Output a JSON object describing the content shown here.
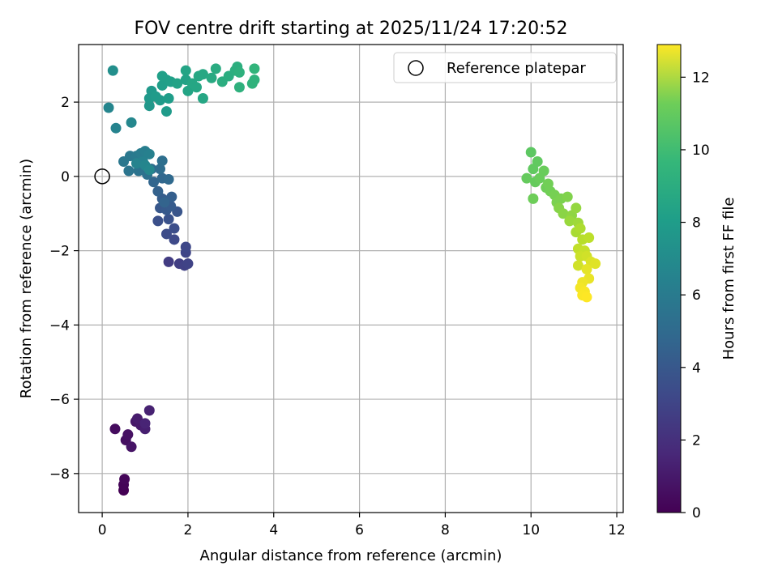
{
  "chart_data": {
    "type": "scatter",
    "title": "FOV centre drift starting at 2025/11/24 17:20:52",
    "xlabel": "Angular distance from reference (arcmin)",
    "ylabel": "Rotation from reference (arcmin)",
    "xlim": [
      -0.55,
      12.15
    ],
    "ylim": [
      -9.05,
      3.55
    ],
    "xticks": [
      0,
      2,
      4,
      6,
      8,
      10,
      12
    ],
    "yticks": [
      -8,
      -6,
      -4,
      -2,
      0,
      2
    ],
    "grid": true,
    "legend": {
      "placement": "top-right",
      "entries": [
        "Reference platepar"
      ]
    },
    "reference_point": {
      "x": 0,
      "y": 0,
      "label": "Reference platepar"
    },
    "colorbar": {
      "label": "Hours from first FF file",
      "min": 0,
      "max": 12.9,
      "ticks": [
        0,
        2,
        4,
        6,
        8,
        10,
        12
      ],
      "colormap": "viridis"
    },
    "series": [
      {
        "name": "FOV centre drift",
        "points": [
          {
            "x": 0.5,
            "y": -8.45,
            "t": 0.0
          },
          {
            "x": 0.5,
            "y": -8.3,
            "t": 0.1
          },
          {
            "x": 0.52,
            "y": -8.15,
            "t": 0.2
          },
          {
            "x": 0.3,
            "y": -6.8,
            "t": 0.4
          },
          {
            "x": 0.55,
            "y": -7.1,
            "t": 0.5
          },
          {
            "x": 0.6,
            "y": -6.95,
            "t": 0.6
          },
          {
            "x": 0.68,
            "y": -7.28,
            "t": 0.7
          },
          {
            "x": 0.78,
            "y": -6.6,
            "t": 0.8
          },
          {
            "x": 0.9,
            "y": -6.7,
            "t": 0.9
          },
          {
            "x": 0.82,
            "y": -6.52,
            "t": 1.0
          },
          {
            "x": 1.0,
            "y": -6.8,
            "t": 1.1
          },
          {
            "x": 1.1,
            "y": -6.3,
            "t": 1.2
          },
          {
            "x": 1.0,
            "y": -6.65,
            "t": 1.3
          },
          {
            "x": 1.55,
            "y": -2.3,
            "t": 2.3
          },
          {
            "x": 1.8,
            "y": -2.35,
            "t": 2.4
          },
          {
            "x": 1.92,
            "y": -2.4,
            "t": 2.5
          },
          {
            "x": 2.0,
            "y": -2.35,
            "t": 2.6
          },
          {
            "x": 1.95,
            "y": -2.05,
            "t": 2.7
          },
          {
            "x": 1.95,
            "y": -1.9,
            "t": 2.8
          },
          {
            "x": 1.68,
            "y": -1.7,
            "t": 2.9
          },
          {
            "x": 1.5,
            "y": -1.55,
            "t": 3.0
          },
          {
            "x": 1.68,
            "y": -1.4,
            "t": 3.1
          },
          {
            "x": 1.3,
            "y": -1.2,
            "t": 3.2
          },
          {
            "x": 1.55,
            "y": -1.15,
            "t": 3.3
          },
          {
            "x": 1.75,
            "y": -0.95,
            "t": 3.4
          },
          {
            "x": 1.35,
            "y": -0.85,
            "t": 3.5
          },
          {
            "x": 1.5,
            "y": -0.9,
            "t": 3.6
          },
          {
            "x": 1.6,
            "y": -0.8,
            "t": 3.7
          },
          {
            "x": 1.4,
            "y": -0.6,
            "t": 3.8
          },
          {
            "x": 1.62,
            "y": -0.55,
            "t": 3.9
          },
          {
            "x": 1.3,
            "y": -0.4,
            "t": 4.0
          },
          {
            "x": 1.45,
            "y": -0.7,
            "t": 4.1
          },
          {
            "x": 1.2,
            "y": -0.15,
            "t": 4.2
          },
          {
            "x": 1.4,
            "y": -0.05,
            "t": 4.3
          },
          {
            "x": 1.55,
            "y": -0.08,
            "t": 4.4
          },
          {
            "x": 1.15,
            "y": 0.2,
            "t": 4.5
          },
          {
            "x": 1.35,
            "y": 0.2,
            "t": 4.6
          },
          {
            "x": 1.4,
            "y": 0.42,
            "t": 4.7
          },
          {
            "x": 1.05,
            "y": 0.05,
            "t": 4.8
          },
          {
            "x": 0.85,
            "y": 0.15,
            "t": 4.9
          },
          {
            "x": 0.62,
            "y": 0.15,
            "t": 5.0
          },
          {
            "x": 0.5,
            "y": 0.4,
            "t": 5.1
          },
          {
            "x": 0.65,
            "y": 0.55,
            "t": 5.2
          },
          {
            "x": 0.8,
            "y": 0.55,
            "t": 5.3
          },
          {
            "x": 0.9,
            "y": 0.62,
            "t": 5.4
          },
          {
            "x": 1.0,
            "y": 0.68,
            "t": 5.5
          },
          {
            "x": 1.1,
            "y": 0.6,
            "t": 5.6
          },
          {
            "x": 0.95,
            "y": 0.4,
            "t": 5.7
          },
          {
            "x": 0.8,
            "y": 0.35,
            "t": 5.8
          },
          {
            "x": 1.0,
            "y": 0.3,
            "t": 5.9
          },
          {
            "x": 1.1,
            "y": 0.18,
            "t": 6.0
          },
          {
            "x": 0.15,
            "y": 1.85,
            "t": 5.9
          },
          {
            "x": 0.32,
            "y": 1.3,
            "t": 5.8
          },
          {
            "x": 0.68,
            "y": 1.45,
            "t": 6.0
          },
          {
            "x": 0.25,
            "y": 2.85,
            "t": 6.4
          },
          {
            "x": 1.1,
            "y": 1.9,
            "t": 6.8
          },
          {
            "x": 1.15,
            "y": 2.3,
            "t": 6.9
          },
          {
            "x": 1.1,
            "y": 2.1,
            "t": 6.9
          },
          {
            "x": 1.25,
            "y": 2.15,
            "t": 7.0
          },
          {
            "x": 1.35,
            "y": 2.05,
            "t": 7.0
          },
          {
            "x": 1.5,
            "y": 1.75,
            "t": 7.0
          },
          {
            "x": 1.55,
            "y": 2.1,
            "t": 7.1
          },
          {
            "x": 1.4,
            "y": 2.45,
            "t": 7.2
          },
          {
            "x": 1.5,
            "y": 2.6,
            "t": 7.2
          },
          {
            "x": 1.4,
            "y": 2.7,
            "t": 7.3
          },
          {
            "x": 1.6,
            "y": 2.55,
            "t": 7.3
          },
          {
            "x": 1.75,
            "y": 2.5,
            "t": 7.4
          },
          {
            "x": 1.95,
            "y": 2.6,
            "t": 7.4
          },
          {
            "x": 1.95,
            "y": 2.85,
            "t": 7.5
          },
          {
            "x": 2.0,
            "y": 2.3,
            "t": 7.5
          },
          {
            "x": 2.1,
            "y": 2.5,
            "t": 7.6
          },
          {
            "x": 2.2,
            "y": 2.4,
            "t": 7.6
          },
          {
            "x": 2.25,
            "y": 2.7,
            "t": 7.7
          },
          {
            "x": 2.35,
            "y": 2.75,
            "t": 7.7
          },
          {
            "x": 2.35,
            "y": 2.1,
            "t": 7.6
          },
          {
            "x": 2.55,
            "y": 2.65,
            "t": 7.8
          },
          {
            "x": 2.65,
            "y": 2.9,
            "t": 7.9
          },
          {
            "x": 2.8,
            "y": 2.55,
            "t": 8.0
          },
          {
            "x": 2.95,
            "y": 2.7,
            "t": 8.0
          },
          {
            "x": 3.1,
            "y": 2.85,
            "t": 8.1
          },
          {
            "x": 3.15,
            "y": 2.95,
            "t": 8.1
          },
          {
            "x": 3.2,
            "y": 2.8,
            "t": 8.2
          },
          {
            "x": 3.2,
            "y": 2.4,
            "t": 8.2
          },
          {
            "x": 3.5,
            "y": 2.5,
            "t": 8.3
          },
          {
            "x": 3.55,
            "y": 2.6,
            "t": 8.3
          },
          {
            "x": 3.55,
            "y": 2.9,
            "t": 8.4
          },
          {
            "x": 10.0,
            "y": 0.65,
            "t": 9.6
          },
          {
            "x": 10.15,
            "y": 0.4,
            "t": 9.7
          },
          {
            "x": 10.05,
            "y": 0.2,
            "t": 9.7
          },
          {
            "x": 9.9,
            "y": -0.05,
            "t": 9.8
          },
          {
            "x": 10.1,
            "y": -0.15,
            "t": 9.8
          },
          {
            "x": 10.3,
            "y": 0.15,
            "t": 9.9
          },
          {
            "x": 10.2,
            "y": -0.05,
            "t": 9.9
          },
          {
            "x": 10.05,
            "y": -0.6,
            "t": 10.0
          },
          {
            "x": 10.35,
            "y": -0.3,
            "t": 10.0
          },
          {
            "x": 10.45,
            "y": -0.4,
            "t": 10.1
          },
          {
            "x": 10.4,
            "y": -0.2,
            "t": 10.1
          },
          {
            "x": 10.55,
            "y": -0.5,
            "t": 10.2
          },
          {
            "x": 10.6,
            "y": -0.7,
            "t": 10.3
          },
          {
            "x": 10.7,
            "y": -0.6,
            "t": 10.3
          },
          {
            "x": 10.85,
            "y": -0.55,
            "t": 10.4
          },
          {
            "x": 10.65,
            "y": -0.85,
            "t": 10.5
          },
          {
            "x": 10.75,
            "y": -1.0,
            "t": 10.6
          },
          {
            "x": 10.95,
            "y": -1.05,
            "t": 10.7
          },
          {
            "x": 11.05,
            "y": -0.85,
            "t": 10.8
          },
          {
            "x": 10.9,
            "y": -1.2,
            "t": 10.9
          },
          {
            "x": 11.1,
            "y": -1.25,
            "t": 11.0
          },
          {
            "x": 11.05,
            "y": -1.5,
            "t": 11.2
          },
          {
            "x": 11.15,
            "y": -1.4,
            "t": 11.3
          },
          {
            "x": 11.2,
            "y": -1.7,
            "t": 11.5
          },
          {
            "x": 11.35,
            "y": -1.65,
            "t": 11.6
          },
          {
            "x": 11.1,
            "y": -1.95,
            "t": 11.7
          },
          {
            "x": 11.25,
            "y": -2.0,
            "t": 11.8
          },
          {
            "x": 11.15,
            "y": -2.15,
            "t": 11.9
          },
          {
            "x": 11.3,
            "y": -2.15,
            "t": 12.0
          },
          {
            "x": 11.1,
            "y": -2.4,
            "t": 12.0
          },
          {
            "x": 11.4,
            "y": -2.3,
            "t": 12.2
          },
          {
            "x": 11.5,
            "y": -2.35,
            "t": 12.3
          },
          {
            "x": 11.3,
            "y": -2.5,
            "t": 12.4
          },
          {
            "x": 11.35,
            "y": -2.75,
            "t": 12.5
          },
          {
            "x": 11.2,
            "y": -2.85,
            "t": 12.6
          },
          {
            "x": 11.15,
            "y": -3.0,
            "t": 12.7
          },
          {
            "x": 11.25,
            "y": -3.1,
            "t": 12.8
          },
          {
            "x": 11.2,
            "y": -3.2,
            "t": 12.85
          },
          {
            "x": 11.3,
            "y": -3.25,
            "t": 12.9
          }
        ]
      }
    ]
  }
}
